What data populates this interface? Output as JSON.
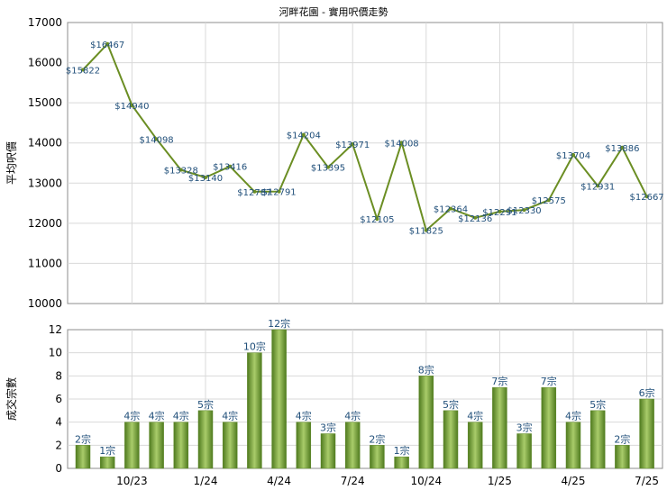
{
  "chart_data": [
    {
      "type": "line",
      "title": "河畔花園 - 實用呎價走勢",
      "ylabel": "平均呎價",
      "ylim": [
        10000,
        17000
      ],
      "yticks": [
        "10000",
        "11000",
        "12000",
        "13000",
        "14000",
        "15000",
        "16000",
        "17000"
      ],
      "grid": true,
      "color": "#6b8e23",
      "series": [
        {
          "values": [
            15822,
            16467,
            14940,
            14098,
            13328,
            13140,
            13416,
            12787,
            12791,
            14204,
            13395,
            13971,
            12105,
            14008,
            11825,
            12364,
            12136,
            12291,
            12330,
            12575,
            13704,
            12931,
            13886,
            12667
          ],
          "labels": [
            "$15822",
            "$16467",
            "$14940",
            "$14098",
            "$13328",
            "$13140",
            "$13416",
            "$12787",
            "$12791",
            "$14204",
            "$13395",
            "$13971",
            "$12105",
            "$14008",
            "$11825",
            "$12364",
            "$12136",
            "$12291",
            "$12330",
            "$12575",
            "$13704",
            "$12931",
            "$13886",
            "$12667"
          ]
        }
      ]
    },
    {
      "type": "bar",
      "ylabel": "成交宗數",
      "ylim": [
        0,
        12
      ],
      "yticks": [
        "0",
        "2",
        "4",
        "6",
        "8",
        "10",
        "12"
      ],
      "grid": true,
      "color": "#7aa23a",
      "xticks": [
        "10/23",
        "1/24",
        "4/24",
        "7/24",
        "10/24",
        "1/25",
        "4/25",
        "7/25"
      ],
      "series": [
        {
          "values": [
            2,
            1,
            4,
            4,
            4,
            5,
            4,
            10,
            12,
            4,
            3,
            4,
            2,
            1,
            8,
            5,
            4,
            7,
            3,
            7,
            4,
            5,
            2,
            6
          ],
          "labels": [
            "2宗",
            "1宗",
            "4宗",
            "4宗",
            "4宗",
            "5宗",
            "4宗",
            "10宗",
            "12宗",
            "4宗",
            "3宗",
            "4宗",
            "2宗",
            "1宗",
            "8宗",
            "5宗",
            "4宗",
            "7宗",
            "3宗",
            "7宗",
            "4宗",
            "5宗",
            "2宗",
            "6宗"
          ]
        }
      ]
    }
  ]
}
